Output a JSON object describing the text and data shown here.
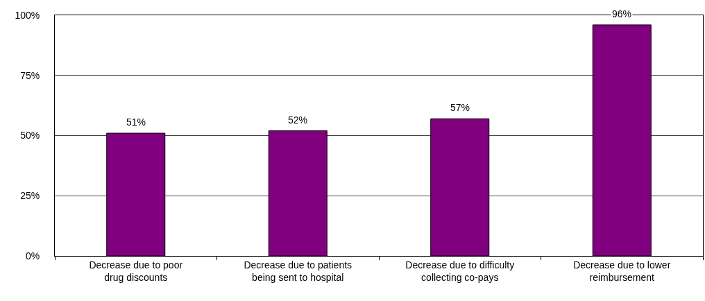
{
  "chart_data": {
    "type": "bar",
    "categories": [
      "Decrease due to poor\ndrug discounts",
      "Decrease due to patients\nbeing sent to hospital",
      "Decrease due to difficulty\ncollecting co-pays",
      "Decrease due to lower\nreimbursement"
    ],
    "values": [
      51,
      52,
      57,
      96
    ],
    "color": "#800080",
    "value_labels": [
      "51%",
      "52%",
      "57%",
      "96%"
    ],
    "ylim": [
      0,
      100
    ],
    "yticks": [
      {
        "value": 0,
        "label": "0%"
      },
      {
        "value": 25,
        "label": "25%"
      },
      {
        "value": 50,
        "label": "50%"
      },
      {
        "value": 75,
        "label": "75%"
      },
      {
        "value": 100,
        "label": "100%"
      }
    ],
    "grid": "y"
  }
}
